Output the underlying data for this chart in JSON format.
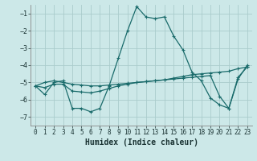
{
  "xlabel": "Humidex (Indice chaleur)",
  "bg_color": "#cce8e8",
  "grid_color": "#aacccc",
  "line_color": "#1a6b6b",
  "series": [
    {
      "x": [
        0,
        1,
        2,
        3,
        4,
        5,
        6,
        7,
        8,
        9,
        10,
        11,
        12,
        13,
        14,
        15,
        16,
        17,
        18,
        19,
        20,
        21,
        22,
        23
      ],
      "y": [
        -5.2,
        -5.7,
        -5.0,
        -4.9,
        -6.5,
        -6.5,
        -6.7,
        -6.5,
        -5.2,
        -3.6,
        -2.0,
        -0.6,
        -1.2,
        -1.3,
        -1.2,
        -2.3,
        -3.1,
        -4.4,
        -4.9,
        -5.9,
        -6.3,
        -6.5,
        -4.8,
        -4.0
      ]
    },
    {
      "x": [
        0,
        1,
        2,
        3,
        4,
        5,
        6,
        7,
        8,
        9,
        10,
        11,
        12,
        13,
        14,
        15,
        16,
        17,
        18,
        19,
        20,
        21,
        22,
        23
      ],
      "y": [
        -5.2,
        -5.0,
        -4.9,
        -5.0,
        -5.1,
        -5.15,
        -5.2,
        -5.2,
        -5.15,
        -5.1,
        -5.05,
        -5.0,
        -4.95,
        -4.9,
        -4.85,
        -4.75,
        -4.65,
        -4.55,
        -4.5,
        -4.45,
        -4.4,
        -4.35,
        -4.2,
        -4.1
      ]
    },
    {
      "x": [
        0,
        1,
        2,
        3,
        4,
        5,
        6,
        7,
        8,
        9,
        10,
        11,
        12,
        13,
        14,
        15,
        16,
        17,
        18,
        19,
        20,
        21,
        22,
        23
      ],
      "y": [
        -5.2,
        -5.3,
        -5.1,
        -5.1,
        -5.5,
        -5.55,
        -5.6,
        -5.5,
        -5.35,
        -5.2,
        -5.1,
        -5.0,
        -4.95,
        -4.9,
        -4.85,
        -4.8,
        -4.75,
        -4.7,
        -4.65,
        -4.6,
        -5.8,
        -6.5,
        -4.7,
        -4.1
      ]
    }
  ],
  "ylim": [
    -7.5,
    -0.5
  ],
  "xlim": [
    -0.5,
    23.5
  ],
  "yticks": [
    -7,
    -6,
    -5,
    -4,
    -3,
    -2,
    -1
  ],
  "xticks": [
    0,
    1,
    2,
    3,
    4,
    5,
    6,
    7,
    8,
    9,
    10,
    11,
    12,
    13,
    14,
    15,
    16,
    17,
    18,
    19,
    20,
    21,
    22,
    23
  ],
  "tick_fontsize": 5.5,
  "xlabel_fontsize": 7
}
